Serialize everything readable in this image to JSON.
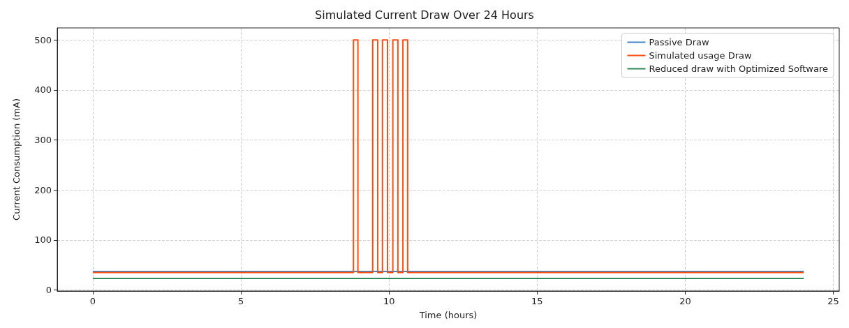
{
  "chart_data": {
    "type": "step",
    "title": "Simulated Current Draw Over 24 Hours",
    "xlabel": "Time (hours)",
    "ylabel": "Current Consumption (mA)",
    "xlim": [
      -1.2,
      25.2
    ],
    "xticks": [
      0,
      5,
      10,
      15,
      20,
      25
    ],
    "ylim": [
      -2,
      524
    ],
    "yticks": [
      0,
      100,
      200,
      300,
      400,
      500
    ],
    "grid": true,
    "legend": "top right",
    "line_style": "solid",
    "marker": "none",
    "series": [
      {
        "name": "Passive Draw",
        "color": "#3d85c6",
        "x": [
          0,
          4,
          8,
          12,
          16,
          20,
          24
        ],
        "values": [
          37,
          37,
          37,
          37,
          37,
          37,
          37
        ]
      },
      {
        "name": "Simulated usage Draw",
        "color": "#ff4f12",
        "x": [
          0,
          8.8,
          8.95,
          9.45,
          9.62,
          9.78,
          9.95,
          10.13,
          10.3,
          10.47,
          10.63,
          24
        ],
        "values": [
          35,
          500,
          35,
          500,
          35,
          500,
          35,
          500,
          35,
          500,
          35,
          35
        ]
      },
      {
        "name": "Reduced draw with Optimized Software",
        "color": "#2e8b57",
        "x": [
          0,
          4,
          8,
          12,
          16,
          20,
          24
        ],
        "values": [
          23,
          23,
          23,
          23,
          23,
          23,
          23
        ]
      }
    ]
  }
}
